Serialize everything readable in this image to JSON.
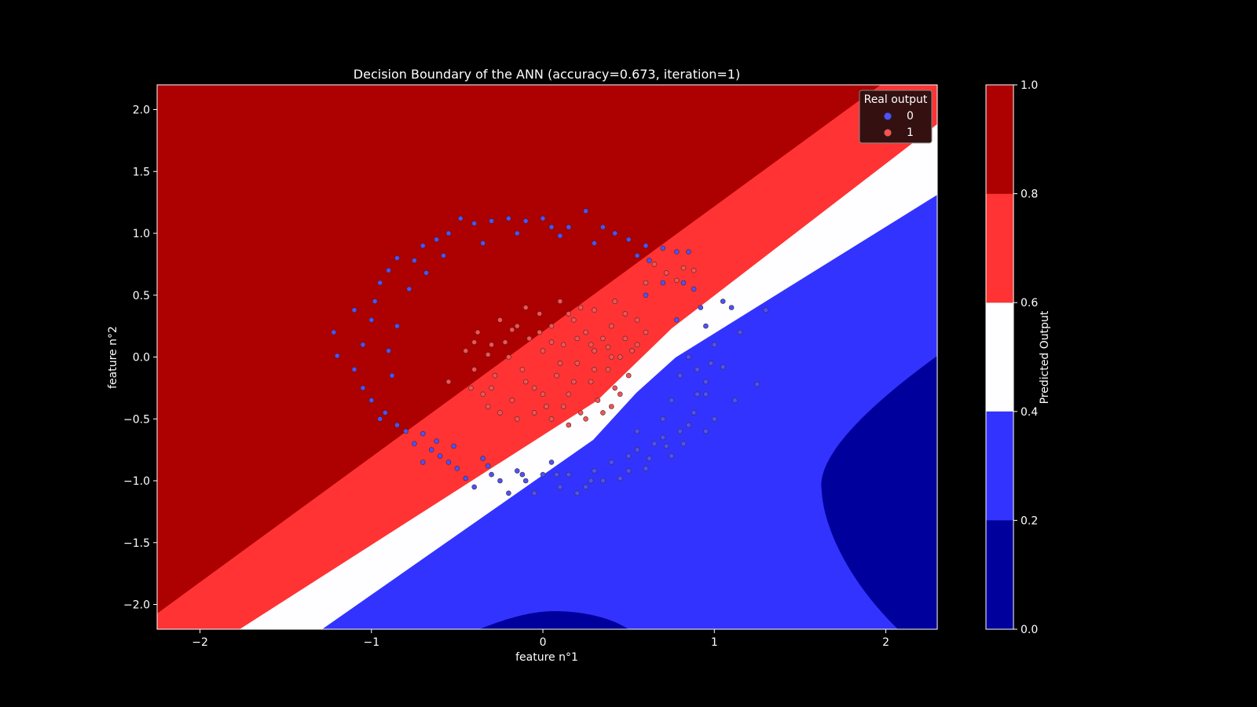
{
  "chart_data": {
    "type": "scatter",
    "title": "Decision Boundary of the ANN (accuracy=0.673, iteration=1)",
    "xlabel": "feature n°1",
    "ylabel": "feature n°2",
    "xlim": [
      -2.25,
      2.3
    ],
    "ylim": [
      -2.2,
      2.2
    ],
    "x_ticks": [
      -2,
      -1,
      0,
      1,
      2
    ],
    "x_tick_labels": [
      "−2",
      "−1",
      "0",
      "1",
      "2"
    ],
    "y_ticks": [
      -2.0,
      -1.5,
      -1.0,
      -0.5,
      0.0,
      0.5,
      1.0,
      1.5,
      2.0
    ],
    "y_tick_labels": [
      "−2.0",
      "−1.5",
      "−1.0",
      "−0.5",
      "0.0",
      "0.5",
      "1.0",
      "1.5",
      "2.0"
    ],
    "legend": {
      "title": "Real output",
      "position": "top-right",
      "entries": [
        {
          "label": "0",
          "color": "#5050ff"
        },
        {
          "label": "1",
          "color": "#ff5050"
        }
      ]
    },
    "colorbar": {
      "label": "Predicted Output",
      "ticks": [
        0.0,
        0.2,
        0.4,
        0.6,
        0.8,
        1.0
      ],
      "tick_labels": [
        "0.0",
        "0.2",
        "0.4",
        "0.6",
        "0.8",
        "1.0"
      ],
      "levels": [
        {
          "range": [
            0.0,
            0.2
          ],
          "color": "#00009c"
        },
        {
          "range": [
            0.2,
            0.4
          ],
          "color": "#3333ff"
        },
        {
          "range": [
            0.4,
            0.6
          ],
          "color": "#fefdff"
        },
        {
          "range": [
            0.6,
            0.8
          ],
          "color": "#ff3333"
        },
        {
          "range": [
            0.8,
            1.0
          ],
          "color": "#ad0000"
        }
      ]
    },
    "series": [
      {
        "name": "0",
        "color": "#5050ff",
        "points": [
          [
            -1.22,
            0.2
          ],
          [
            -1.2,
            0.01
          ],
          [
            -1.1,
            -0.1
          ],
          [
            -1.05,
            -0.25
          ],
          [
            -1.05,
            0.1
          ],
          [
            -1.0,
            0.3
          ],
          [
            -0.98,
            0.45
          ],
          [
            -0.95,
            0.6
          ],
          [
            -0.9,
            0.7
          ],
          [
            -0.85,
            0.8
          ],
          [
            -0.75,
            0.78
          ],
          [
            -0.7,
            0.9
          ],
          [
            -0.62,
            0.95
          ],
          [
            -0.55,
            1.0
          ],
          [
            -0.48,
            1.12
          ],
          [
            -0.4,
            1.08
          ],
          [
            -0.3,
            1.1
          ],
          [
            -0.2,
            1.12
          ],
          [
            -0.1,
            1.1
          ],
          [
            0.0,
            1.12
          ],
          [
            0.05,
            1.05
          ],
          [
            0.15,
            1.05
          ],
          [
            0.25,
            1.18
          ],
          [
            0.35,
            1.05
          ],
          [
            0.42,
            1.0
          ],
          [
            0.5,
            0.95
          ],
          [
            0.6,
            0.9
          ],
          [
            0.7,
            0.88
          ],
          [
            0.78,
            0.85
          ],
          [
            0.85,
            0.85
          ],
          [
            -1.0,
            -0.35
          ],
          [
            -0.95,
            -0.5
          ],
          [
            -0.92,
            -0.45
          ],
          [
            -0.85,
            -0.55
          ],
          [
            -0.8,
            -0.6
          ],
          [
            -0.75,
            -0.7
          ],
          [
            -0.7,
            -0.85
          ],
          [
            -0.65,
            -0.75
          ],
          [
            -0.6,
            -0.8
          ],
          [
            -0.55,
            -0.85
          ],
          [
            -0.5,
            -0.9
          ],
          [
            -0.45,
            -0.98
          ],
          [
            -0.4,
            -1.05
          ],
          [
            -0.35,
            -0.82
          ],
          [
            -0.3,
            -0.95
          ],
          [
            -0.25,
            -1.0
          ],
          [
            -0.2,
            -1.1
          ],
          [
            -0.15,
            -0.92
          ],
          [
            -0.1,
            -1.0
          ],
          [
            -0.05,
            -1.1
          ],
          [
            0.0,
            -0.95
          ],
          [
            0.05,
            -0.85
          ],
          [
            0.1,
            -1.05
          ],
          [
            0.15,
            -0.95
          ],
          [
            0.2,
            -1.1
          ],
          [
            0.25,
            -1.05
          ],
          [
            0.3,
            -0.92
          ],
          [
            0.35,
            -1.0
          ],
          [
            0.4,
            -0.85
          ],
          [
            0.45,
            -0.98
          ],
          [
            0.5,
            -0.8
          ],
          [
            0.55,
            -0.75
          ],
          [
            0.6,
            -0.9
          ],
          [
            0.65,
            -0.7
          ],
          [
            0.7,
            -0.65
          ],
          [
            0.75,
            -0.8
          ],
          [
            0.8,
            -0.6
          ],
          [
            0.85,
            -0.55
          ],
          [
            0.88,
            -0.45
          ],
          [
            0.9,
            -0.3
          ],
          [
            0.95,
            -0.2
          ],
          [
            0.98,
            -0.05
          ],
          [
            1.0,
            0.1
          ],
          [
            0.95,
            0.25
          ],
          [
            0.92,
            0.4
          ],
          [
            0.88,
            0.55
          ],
          [
            0.82,
            0.6
          ],
          [
            0.78,
            0.3
          ],
          [
            0.85,
            0.0
          ],
          [
            0.8,
            -0.15
          ],
          [
            0.75,
            -0.35
          ],
          [
            0.7,
            -0.5
          ],
          [
            1.05,
            0.45
          ],
          [
            1.1,
            0.4
          ],
          [
            1.15,
            0.2
          ],
          [
            1.3,
            0.38
          ],
          [
            1.25,
            -0.22
          ],
          [
            1.12,
            -0.35
          ],
          [
            1.0,
            -0.5
          ],
          [
            0.95,
            -0.6
          ],
          [
            -0.9,
            0.05
          ],
          [
            -0.85,
            0.25
          ],
          [
            -0.88,
            -0.15
          ],
          [
            -1.1,
            0.38
          ],
          [
            -0.78,
            0.55
          ],
          [
            -0.68,
            0.68
          ],
          [
            -0.58,
            0.82
          ],
          [
            -0.35,
            0.92
          ],
          [
            -0.15,
            1.0
          ],
          [
            0.1,
            0.98
          ],
          [
            0.3,
            0.92
          ],
          [
            0.55,
            0.82
          ],
          [
            0.62,
            0.78
          ],
          [
            -0.7,
            -0.62
          ],
          [
            -0.62,
            -0.68
          ],
          [
            -0.52,
            -0.72
          ],
          [
            -0.32,
            -0.88
          ],
          [
            -0.12,
            -0.95
          ],
          [
            0.08,
            -0.95
          ],
          [
            0.28,
            -1.0
          ],
          [
            0.5,
            -0.92
          ],
          [
            0.62,
            -0.82
          ],
          [
            0.72,
            -0.72
          ],
          [
            0.82,
            -0.7
          ],
          [
            0.9,
            -0.1
          ],
          [
            0.95,
            -0.3
          ],
          [
            1.05,
            -0.08
          ],
          [
            0.6,
            0.5
          ],
          [
            0.7,
            0.6
          ],
          [
            0.55,
            -0.6
          ]
        ]
      },
      {
        "name": "1",
        "color": "#ff5050",
        "points": [
          [
            -0.55,
            -0.2
          ],
          [
            -0.45,
            0.05
          ],
          [
            -0.4,
            -0.1
          ],
          [
            -0.38,
            0.2
          ],
          [
            -0.35,
            -0.3
          ],
          [
            -0.3,
            0.1
          ],
          [
            -0.28,
            -0.15
          ],
          [
            -0.25,
            0.3
          ],
          [
            -0.2,
            0.0
          ],
          [
            -0.18,
            -0.35
          ],
          [
            -0.15,
            0.25
          ],
          [
            -0.12,
            -0.1
          ],
          [
            -0.1,
            0.4
          ],
          [
            -0.08,
            0.15
          ],
          [
            -0.05,
            -0.25
          ],
          [
            -0.02,
            0.35
          ],
          [
            0.0,
            0.05
          ],
          [
            0.02,
            -0.4
          ],
          [
            0.05,
            0.25
          ],
          [
            0.08,
            -0.15
          ],
          [
            0.1,
            0.45
          ],
          [
            0.12,
            0.1
          ],
          [
            0.15,
            -0.3
          ],
          [
            0.18,
            0.3
          ],
          [
            0.2,
            -0.05
          ],
          [
            0.22,
            -0.45
          ],
          [
            0.25,
            0.2
          ],
          [
            0.28,
            -0.2
          ],
          [
            0.3,
            0.05
          ],
          [
            0.32,
            -0.35
          ],
          [
            0.35,
            0.15
          ],
          [
            0.38,
            -0.1
          ],
          [
            0.4,
            0.25
          ],
          [
            0.42,
            -0.25
          ],
          [
            0.45,
            0.0
          ],
          [
            0.48,
            0.15
          ],
          [
            0.5,
            -0.15
          ],
          [
            0.52,
            0.05
          ],
          [
            0.55,
            0.1
          ],
          [
            0.45,
            -0.3
          ],
          [
            0.4,
            -0.4
          ],
          [
            0.35,
            -0.45
          ],
          [
            0.25,
            -0.5
          ],
          [
            0.15,
            -0.55
          ],
          [
            0.05,
            -0.5
          ],
          [
            -0.05,
            -0.45
          ],
          [
            -0.15,
            -0.5
          ],
          [
            -0.25,
            -0.45
          ],
          [
            -0.32,
            -0.4
          ],
          [
            -0.42,
            -0.25
          ],
          [
            0.6,
            0.6
          ],
          [
            0.72,
            0.68
          ],
          [
            0.78,
            0.62
          ],
          [
            0.65,
            0.75
          ],
          [
            0.88,
            0.7
          ],
          [
            0.82,
            0.72
          ],
          [
            0.55,
            0.3
          ],
          [
            0.6,
            0.2
          ],
          [
            0.48,
            0.35
          ],
          [
            0.42,
            0.45
          ],
          [
            -0.22,
            0.12
          ],
          [
            -0.32,
            0.02
          ],
          [
            -0.02,
            0.2
          ],
          [
            0.15,
            0.35
          ],
          [
            0.3,
            0.38
          ],
          [
            0.2,
            0.15
          ],
          [
            0.1,
            -0.05
          ],
          [
            -0.1,
            -0.2
          ],
          [
            0.0,
            -0.3
          ],
          [
            0.3,
            -0.1
          ],
          [
            0.38,
            0.08
          ],
          [
            0.05,
            0.12
          ],
          [
            -0.18,
            0.22
          ],
          [
            0.22,
            0.4
          ],
          [
            0.12,
            -0.4
          ],
          [
            -0.3,
            -0.25
          ],
          [
            0.18,
            -0.2
          ],
          [
            0.28,
            0.1
          ],
          [
            -0.4,
            0.12
          ],
          [
            0.4,
            0.0
          ]
        ]
      }
    ]
  }
}
